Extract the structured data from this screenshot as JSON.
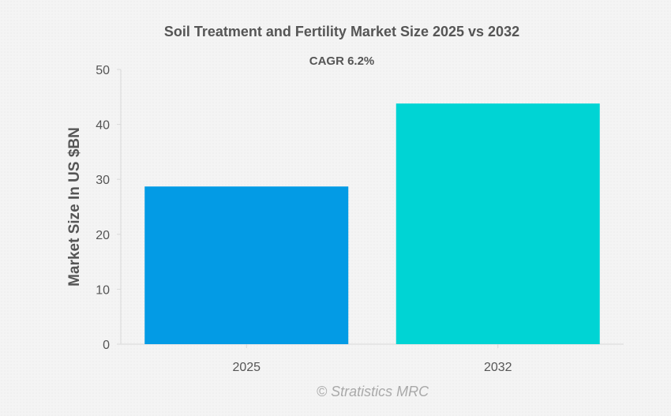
{
  "chart_data": {
    "type": "bar",
    "title": "Soil Treatment and Fertility Market Size 2025 vs 2032",
    "subtitle": "CAGR 6.2%",
    "xlabel": "",
    "ylabel": "Market Size In US $BN",
    "categories": [
      "2025",
      "2032"
    ],
    "values": [
      28.7,
      43.8
    ],
    "colors": [
      "#039be5",
      "#00d4d4"
    ],
    "ylim": [
      0,
      50
    ],
    "yticks": [
      "0",
      "10",
      "20",
      "30",
      "40",
      "50"
    ],
    "grid": false,
    "legend": "none"
  },
  "watermark": "© Stratistics MRC"
}
